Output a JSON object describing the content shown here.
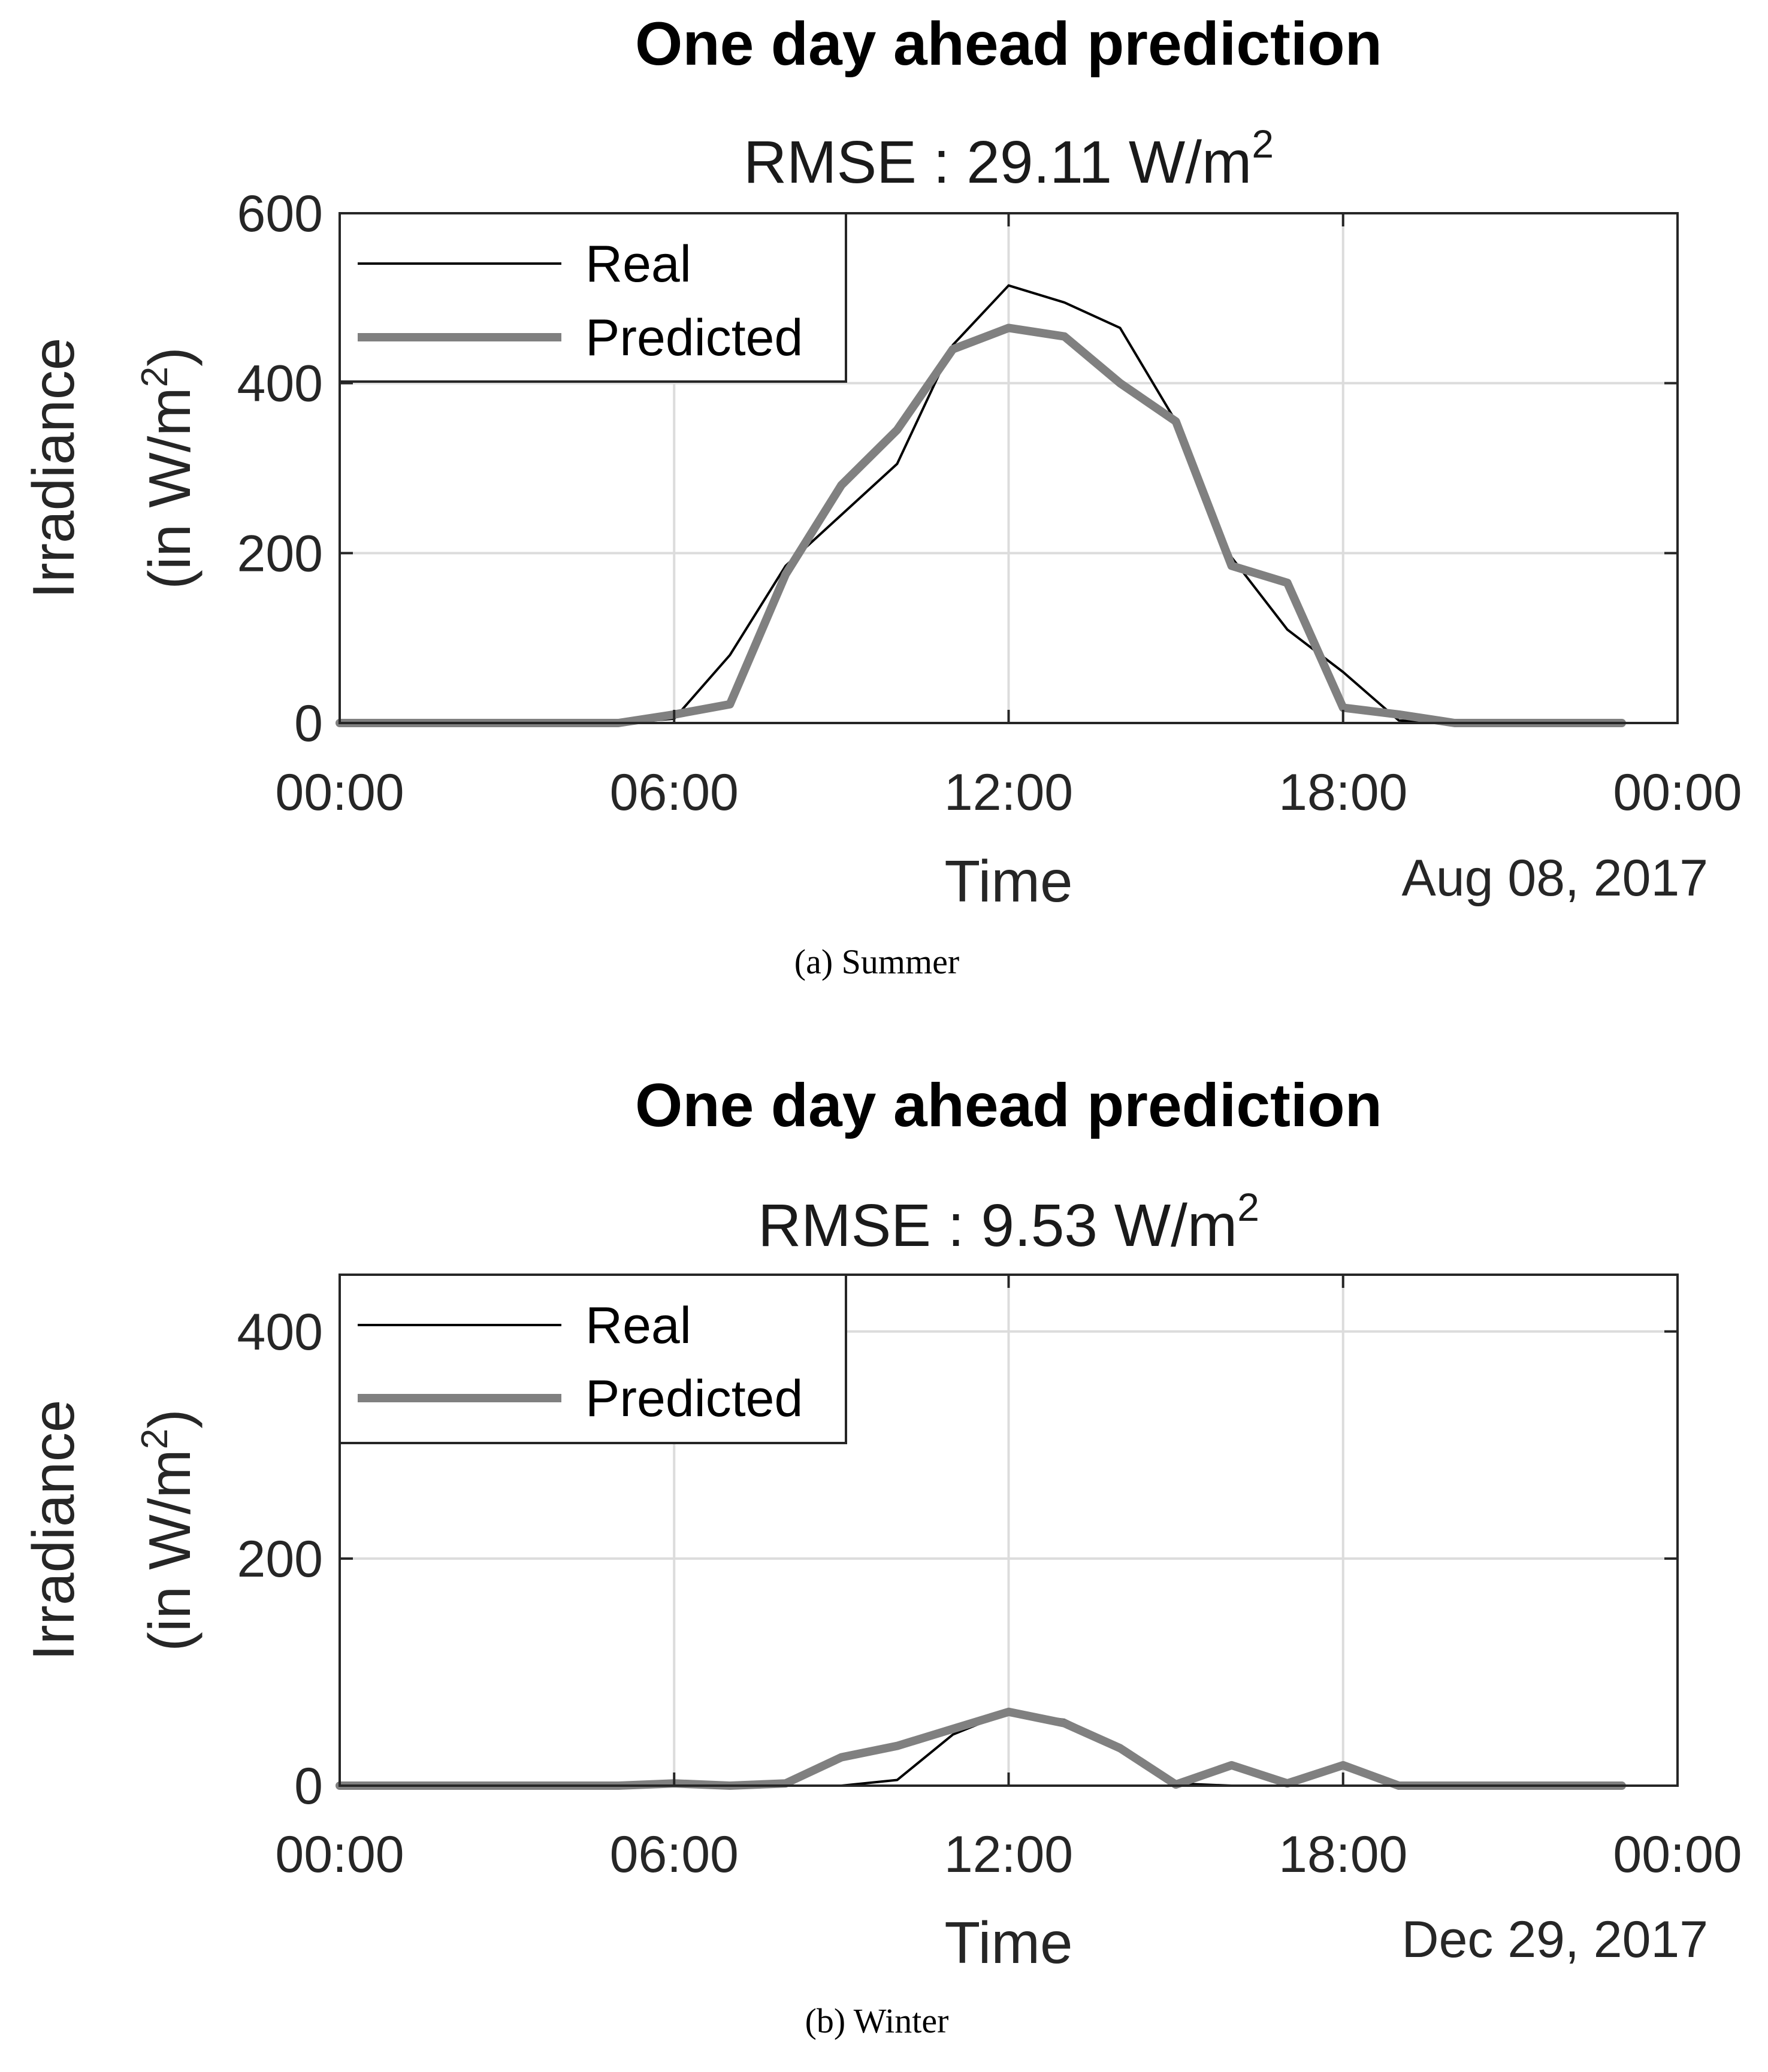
{
  "chart_data": [
    {
      "type": "line",
      "title": "One day ahead prediction",
      "subtitle_prefix": "RMSE : 29.11 W/m",
      "subtitle_sup": "2",
      "xlabel": "Time",
      "x_date_label": "Aug 08, 2017",
      "ylabel_line1": "Irradiance",
      "ylabel_line2_prefix": "(in W/m",
      "ylabel_line2_sup": "2",
      "ylabel_line2_suffix": ")",
      "x_tick_labels": [
        "00:00",
        "06:00",
        "12:00",
        "18:00",
        "00:00"
      ],
      "x_ticks_hours": [
        0,
        6,
        12,
        18,
        24
      ],
      "y_ticks": [
        0,
        200,
        400,
        600
      ],
      "ylim": [
        0,
        600
      ],
      "xlim_hours": [
        0,
        24
      ],
      "grid": true,
      "legend_position": "top-left",
      "caption": "(a) Summer",
      "x_hours": [
        0,
        1,
        2,
        3,
        4,
        5,
        6,
        7,
        8,
        9,
        10,
        11,
        12,
        13,
        14,
        15,
        16,
        17,
        18,
        19,
        20,
        21,
        22,
        23
      ],
      "series": [
        {
          "name": "Real",
          "color": "#000000",
          "style": "thin",
          "values": [
            0,
            0,
            0,
            0,
            0,
            0,
            5,
            80,
            185,
            245,
            305,
            445,
            515,
            495,
            465,
            355,
            195,
            110,
            60,
            3,
            0,
            0,
            0,
            0
          ]
        },
        {
          "name": "Predicted",
          "color": "#808080",
          "style": "thick",
          "values": [
            0,
            0,
            0,
            0,
            0,
            0,
            10,
            22,
            175,
            280,
            345,
            440,
            465,
            455,
            400,
            355,
            185,
            165,
            18,
            10,
            0,
            0,
            0,
            0
          ]
        }
      ]
    },
    {
      "type": "line",
      "title": "One day ahead prediction",
      "subtitle_prefix": "RMSE :  9.53 W/m",
      "subtitle_sup": "2",
      "xlabel": "Time",
      "x_date_label": "Dec 29, 2017",
      "ylabel_line1": "Irradiance",
      "ylabel_line2_prefix": "(in W/m",
      "ylabel_line2_sup": "2",
      "ylabel_line2_suffix": ")",
      "x_tick_labels": [
        "00:00",
        "06:00",
        "12:00",
        "18:00",
        "00:00"
      ],
      "x_ticks_hours": [
        0,
        6,
        12,
        18,
        24
      ],
      "y_ticks": [
        0,
        200,
        400
      ],
      "ylim": [
        0,
        450
      ],
      "xlim_hours": [
        0,
        24
      ],
      "grid": true,
      "legend_position": "top-left",
      "caption": "(b) Winter",
      "x_hours": [
        0,
        1,
        2,
        3,
        4,
        5,
        6,
        7,
        8,
        9,
        10,
        11,
        12,
        13,
        14,
        15,
        16,
        17,
        18,
        19,
        20,
        21,
        22,
        23
      ],
      "series": [
        {
          "name": "Real",
          "color": "#000000",
          "style": "thin",
          "values": [
            0,
            0,
            0,
            0,
            0,
            0,
            2,
            0,
            0,
            0,
            5,
            45,
            65,
            58,
            35,
            2,
            0,
            0,
            0,
            0,
            0,
            0,
            0,
            0
          ]
        },
        {
          "name": "Predicted",
          "color": "#808080",
          "style": "thick",
          "values": [
            0,
            0,
            0,
            0,
            0,
            0,
            2,
            0,
            2,
            25,
            35,
            50,
            65,
            55,
            33,
            1,
            18,
            2,
            18,
            0,
            0,
            0,
            0,
            0
          ]
        }
      ]
    }
  ]
}
